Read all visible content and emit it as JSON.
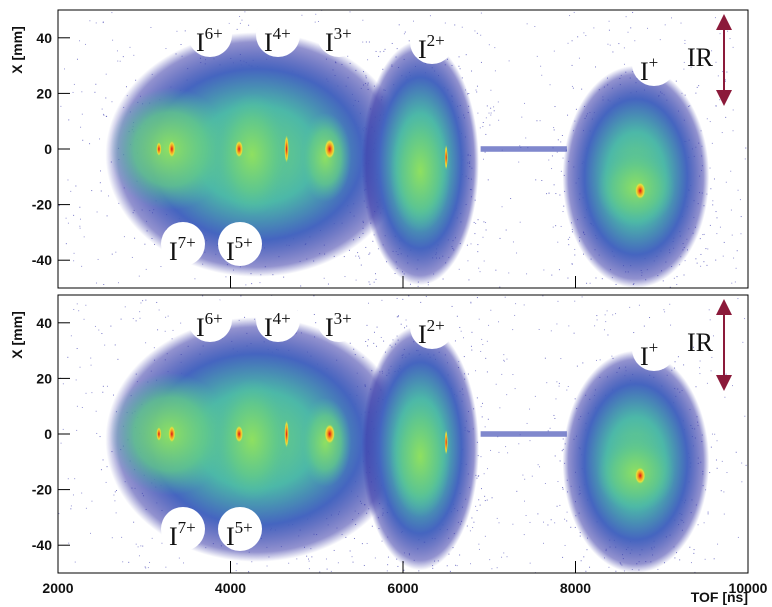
{
  "chart_data": [
    {
      "type": "density",
      "ylabel": "X [mm]",
      "xlim": [
        2000,
        10000
      ],
      "ylim": [
        -50,
        50
      ],
      "xticks": [
        2000,
        4000,
        6000,
        8000,
        10000
      ],
      "yticks": [
        -40,
        -20,
        0,
        20,
        40
      ],
      "annotations": [
        {
          "text": "I",
          "sup": "6+"
        },
        {
          "text": "I",
          "sup": "4+"
        },
        {
          "text": "I",
          "sup": "3+"
        },
        {
          "text": "I",
          "sup": "2+"
        },
        {
          "text": "I",
          "sup": "+"
        },
        {
          "text": "I",
          "sup": "7+"
        },
        {
          "text": "I",
          "sup": "5+"
        },
        {
          "text": "IR"
        }
      ]
    },
    {
      "type": "density",
      "ylabel": "X [mm]",
      "xlabel": "TOF [ns]",
      "xlim": [
        2000,
        10000
      ],
      "ylim": [
        -50,
        50
      ],
      "xticks": [
        2000,
        4000,
        6000,
        8000,
        10000
      ],
      "yticks": [
        -40,
        -20,
        0,
        20,
        40
      ],
      "annotations": [
        {
          "text": "I",
          "sup": "6+"
        },
        {
          "text": "I",
          "sup": "4+"
        },
        {
          "text": "I",
          "sup": "3+"
        },
        {
          "text": "I",
          "sup": "2+"
        },
        {
          "text": "I",
          "sup": "+"
        },
        {
          "text": "I",
          "sup": "7+"
        },
        {
          "text": "I",
          "sup": "5+"
        },
        {
          "text": "IR"
        }
      ]
    }
  ]
}
